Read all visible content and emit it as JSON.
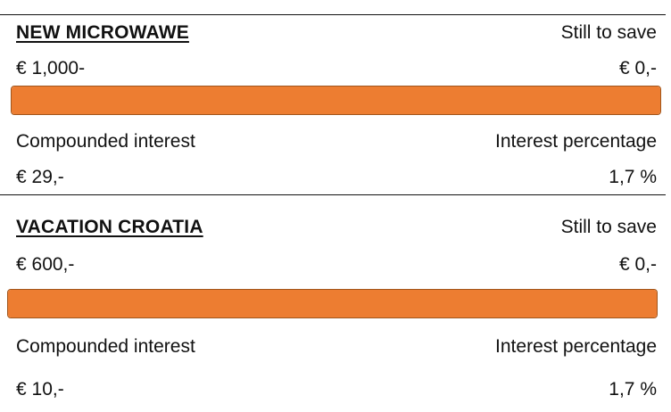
{
  "goals": [
    {
      "title": "NEW MICROWAWE",
      "still_to_save_label": "Still to save",
      "amount": "€ 1,000-",
      "still_to_save_value": "€ 0,-",
      "progress": 1.0,
      "compounded_interest_label": "Compounded interest",
      "interest_percentage_label": "Interest percentage",
      "compounded_interest_value": "€ 29,-",
      "interest_percentage_value": "1,7 %"
    },
    {
      "title": "VACATION CROATIA",
      "still_to_save_label": "Still to save",
      "amount": "€ 600,-",
      "still_to_save_value": "€ 0,-",
      "progress": 1.0,
      "compounded_interest_label": "Compounded interest",
      "interest_percentage_label": "Interest percentage",
      "compounded_interest_value": "€ 10,-",
      "interest_percentage_value": "1,7 %"
    }
  ],
  "colors": {
    "progress_fill": "#ed7d31",
    "progress_border": "#a0561d",
    "text": "#111111",
    "rule": "#111111"
  }
}
